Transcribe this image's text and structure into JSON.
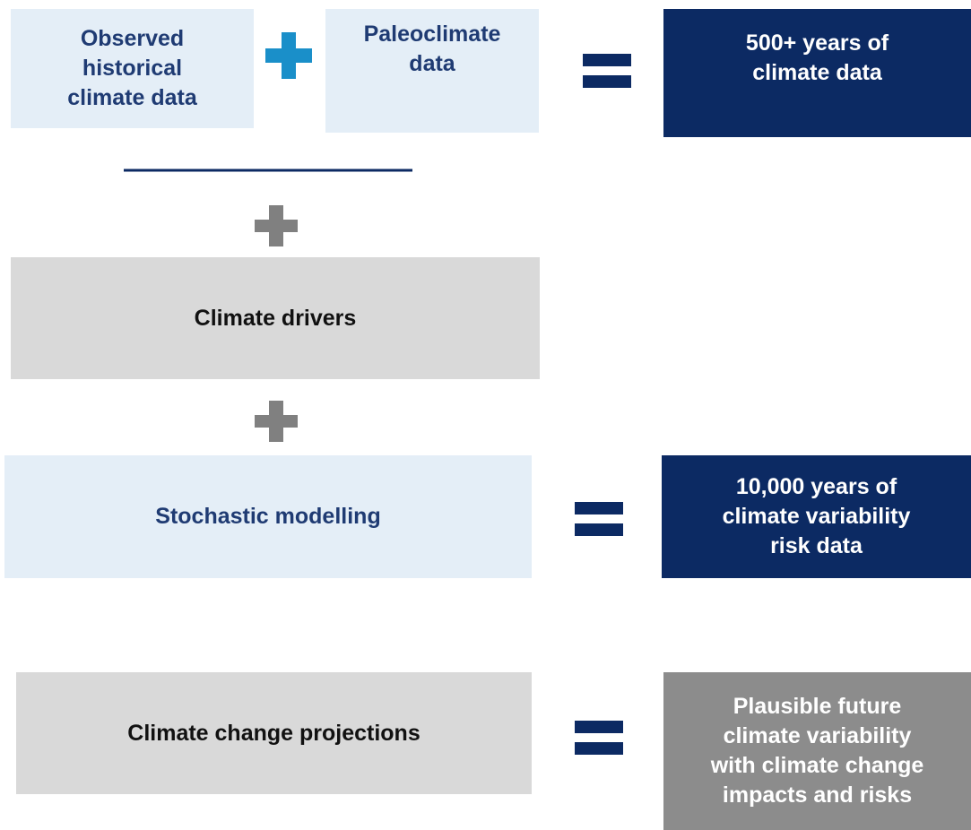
{
  "boxes": [
    {
      "lines": [
        "Observed",
        "historical",
        "climate data"
      ]
    },
    {
      "lines": [
        "Paleoclimate",
        "data"
      ]
    },
    {
      "lines": [
        "500+ years of",
        "climate data"
      ]
    },
    {
      "lines": [
        "Climate drivers"
      ]
    },
    {
      "lines": [
        "Stochastic modelling"
      ]
    },
    {
      "lines": [
        "10,000 years of",
        "climate variability",
        "risk data"
      ]
    },
    {
      "lines": [
        "Climate change projections"
      ]
    },
    {
      "lines": [
        "Plausible future",
        "climate variability",
        "with climate change",
        "impacts and risks"
      ]
    }
  ]
}
